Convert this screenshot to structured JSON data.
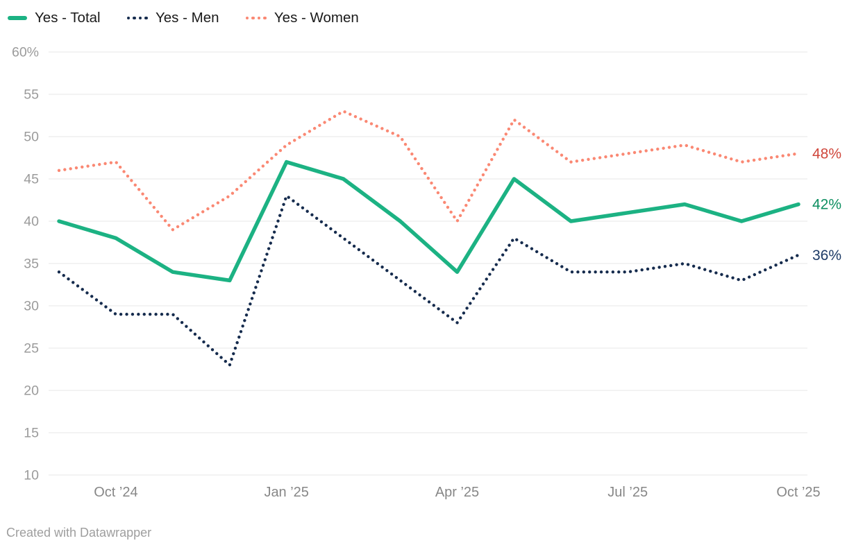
{
  "legend": {
    "items": [
      {
        "label": "Yes - Total",
        "color": "#1cb283",
        "style": "solid"
      },
      {
        "label": "Yes - Men",
        "color": "#152b4d",
        "style": "dotted"
      },
      {
        "label": "Yes - Women",
        "color": "#fa8873",
        "style": "dotted"
      }
    ]
  },
  "chart_data": {
    "type": "line",
    "title": "",
    "categories": [
      "Sep ’24",
      "Oct ’24",
      "Nov ’24",
      "Dec ’24",
      "Jan ’25",
      "Feb ’25",
      "Mar ’25",
      "Apr ’25",
      "May ’25",
      "Jun ’25",
      "Jul ’25",
      "Aug ’25",
      "Sep ’25",
      "Oct ’25"
    ],
    "x_tick_labels": [
      {
        "index": 1,
        "label": "Oct ’24"
      },
      {
        "index": 4,
        "label": "Jan ’25"
      },
      {
        "index": 7,
        "label": "Apr ’25"
      },
      {
        "index": 10,
        "label": "Jul ’25"
      },
      {
        "index": 13,
        "label": "Oct ’25"
      }
    ],
    "series": [
      {
        "name": "Yes - Total",
        "values": [
          40,
          38,
          34,
          33,
          47,
          45,
          40,
          34,
          45,
          40,
          41,
          42,
          40,
          42
        ],
        "color": "#1cb283",
        "line_style": "solid",
        "end_label": "42%",
        "end_label_color": "#0e8f61"
      },
      {
        "name": "Yes - Men",
        "values": [
          34,
          29,
          29,
          23,
          43,
          38,
          33,
          28,
          38,
          34,
          34,
          35,
          33,
          36
        ],
        "color": "#152b4d",
        "line_style": "dotted",
        "end_label": "36%",
        "end_label_color": "#1c3a66"
      },
      {
        "name": "Yes - Women",
        "values": [
          46,
          47,
          39,
          43,
          49,
          53,
          50,
          40,
          52,
          47,
          48,
          49,
          47,
          48
        ],
        "color": "#fa8873",
        "line_style": "dotted",
        "end_label": "48%",
        "end_label_color": "#d0473c"
      }
    ],
    "ylim": [
      10,
      60
    ],
    "y_ticks": [
      {
        "value": 60,
        "label": "60%"
      },
      {
        "value": 55,
        "label": "55"
      },
      {
        "value": 50,
        "label": "50"
      },
      {
        "value": 45,
        "label": "45"
      },
      {
        "value": 40,
        "label": "40"
      },
      {
        "value": 35,
        "label": "35"
      },
      {
        "value": 30,
        "label": "30"
      },
      {
        "value": 25,
        "label": "25"
      },
      {
        "value": 20,
        "label": "20"
      },
      {
        "value": 15,
        "label": "15"
      },
      {
        "value": 10,
        "label": "10"
      }
    ],
    "grid": true,
    "legend_position": "top-left"
  },
  "styles": {
    "grid_color": "#e7e7e7",
    "y_tick_color": "#9b9b9b",
    "x_tick_color": "#878787",
    "legend_text_color": "#1a1a1a",
    "footer_color": "#9e9e9e",
    "background": "#ffffff"
  },
  "footer": {
    "text": "Created with Datawrapper"
  }
}
